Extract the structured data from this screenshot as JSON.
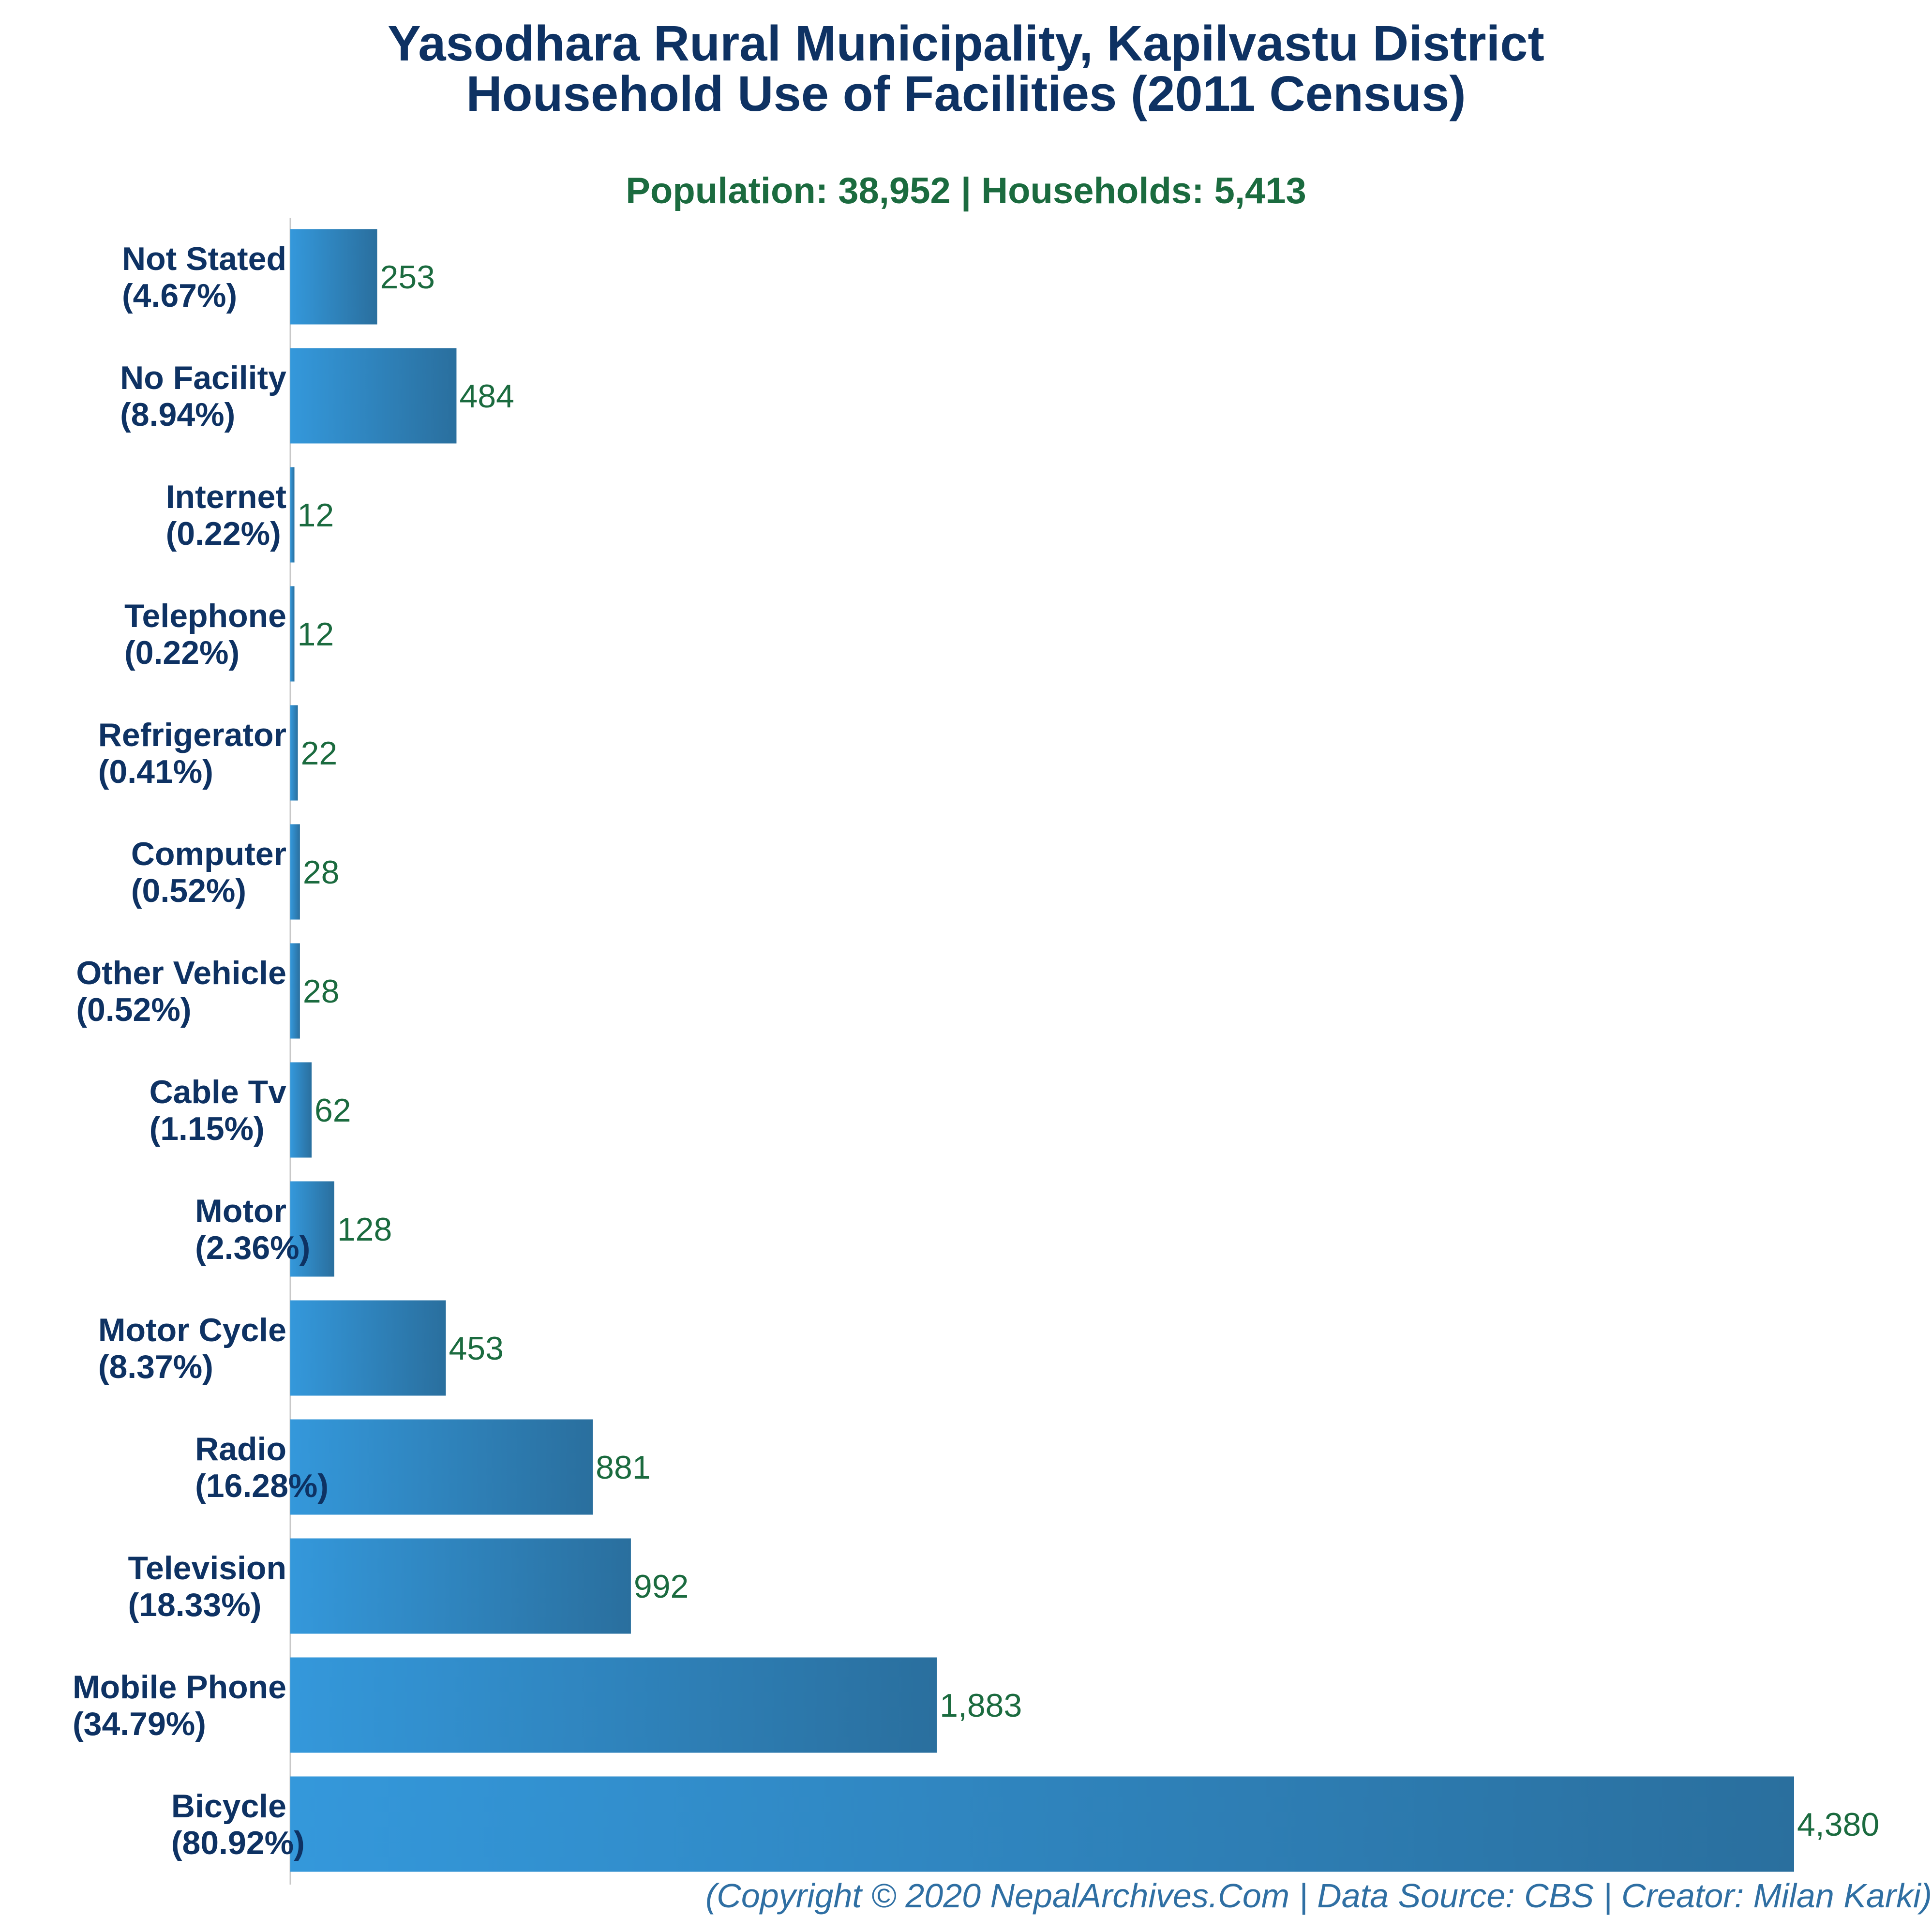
{
  "header": {
    "title_line1": "Yasodhara Rural Municipality, Kapilvastu District",
    "title_line2": "Household Use of Facilities (2011 Census)",
    "subtitle": "Population: 38,952 | Households: 5,413"
  },
  "footer": {
    "text": "(Copyright © 2020 NepalArchives.Com | Data Source: CBS | Creator: Milan Karki)"
  },
  "colors": {
    "bar_start": "#3498db",
    "bar_end": "#2a6f9e",
    "title": "#0e3263",
    "value_label": "#1b6b3f",
    "footer": "#2f6fa3"
  },
  "chart_data": {
    "type": "bar",
    "orientation": "horizontal",
    "title": "Yasodhara Rural Municipality, Kapilvastu District Household Use of Facilities (2011 Census)",
    "subtitle": "Population: 38,952 | Households: 5,413",
    "xlabel": "",
    "ylabel": "",
    "xlim": [
      0,
      4380
    ],
    "grid": false,
    "legend": "none",
    "categories": [
      "Not Stated",
      "No Facility",
      "Internet",
      "Telephone",
      "Refrigerator",
      "Computer",
      "Other Vehicle",
      "Cable Tv",
      "Motor",
      "Motor Cycle",
      "Radio",
      "Television",
      "Mobile Phone",
      "Bicycle"
    ],
    "percent_labels": [
      "(4.67%)",
      "(8.94%)",
      "(0.22%)",
      "(0.22%)",
      "(0.41%)",
      "(0.52%)",
      "(0.52%)",
      "(1.15%)",
      "(2.36%)",
      "(8.37%)",
      "(16.28%)",
      "(18.33%)",
      "(34.79%)",
      "(80.92%)"
    ],
    "values": [
      253,
      484,
      12,
      12,
      22,
      28,
      28,
      62,
      128,
      453,
      881,
      992,
      1883,
      4380
    ],
    "value_labels": [
      "253",
      "484",
      "12",
      "12",
      "22",
      "28",
      "28",
      "62",
      "128",
      "453",
      "881",
      "992",
      "1,883",
      "4,380"
    ]
  }
}
